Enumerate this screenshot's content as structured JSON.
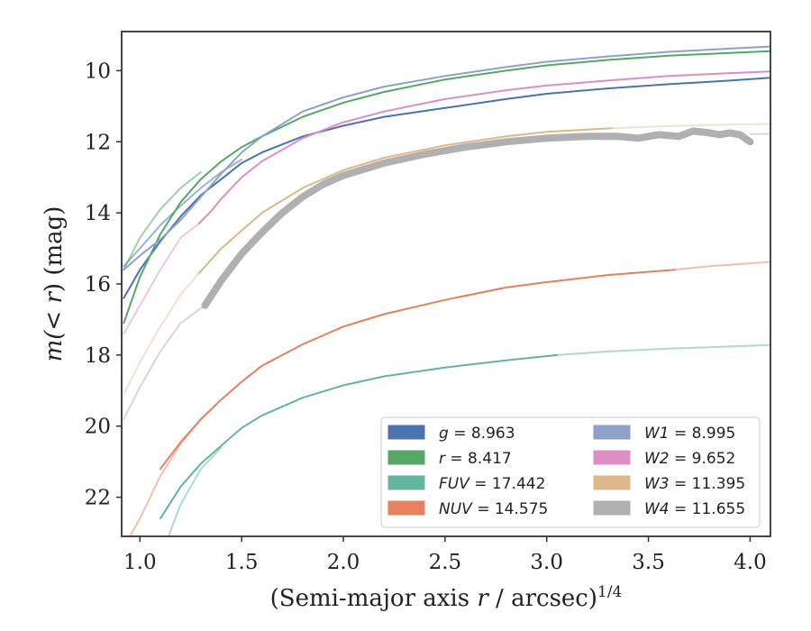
{
  "chart_data": {
    "type": "line",
    "title": "",
    "xlabel_main": "(Semi-major axis ",
    "xlabel_var": "r",
    "xlabel_unit": " / arcsec)",
    "xlabel_exp": "1/4",
    "ylabel_main": "m(< ",
    "ylabel_var": "r",
    "ylabel_unit": ") (mag)",
    "xlim": [
      0.91,
      4.1
    ],
    "ylim": [
      23.1,
      8.9
    ],
    "y_inverted": true,
    "grid": false,
    "legend_position": "lower-right",
    "xticks": [
      {
        "value": 1.0,
        "label": "1.0"
      },
      {
        "value": 1.5,
        "label": "1.5"
      },
      {
        "value": 2.0,
        "label": "2.0"
      },
      {
        "value": 2.5,
        "label": "2.5"
      },
      {
        "value": 3.0,
        "label": "3.0"
      },
      {
        "value": 3.5,
        "label": "3.5"
      },
      {
        "value": 4.0,
        "label": "4.0"
      }
    ],
    "yticks": [
      {
        "value": 10,
        "label": "10"
      },
      {
        "value": 12,
        "label": "12"
      },
      {
        "value": 14,
        "label": "14"
      },
      {
        "value": 16,
        "label": "16"
      },
      {
        "value": 18,
        "label": "18"
      },
      {
        "value": 20,
        "label": "20"
      },
      {
        "value": 22,
        "label": "22"
      }
    ],
    "series": [
      {
        "id": "g",
        "name": "g",
        "total": "8.963",
        "color": "#4c72b0",
        "width": 2,
        "x": [
          0.92,
          1.0,
          1.1,
          1.2,
          1.3,
          1.4,
          1.5,
          1.6,
          1.8,
          2.0,
          2.2,
          2.5,
          2.8,
          3.0,
          3.3,
          3.6,
          3.9,
          4.1
        ],
        "y": [
          16.4,
          15.6,
          14.8,
          14.1,
          13.5,
          13.05,
          12.6,
          12.3,
          11.85,
          11.55,
          11.3,
          11.05,
          10.8,
          10.65,
          10.5,
          10.38,
          10.28,
          10.2
        ]
      },
      {
        "id": "r",
        "name": "r",
        "total": "8.417",
        "color": "#55a868",
        "width": 2,
        "x": [
          0.92,
          1.0,
          1.1,
          1.2,
          1.3,
          1.4,
          1.5,
          1.6,
          1.8,
          2.0,
          2.2,
          2.5,
          2.8,
          3.0,
          3.3,
          3.6,
          3.9,
          4.1
        ],
        "y": [
          17.1,
          15.8,
          14.6,
          13.7,
          13.05,
          12.55,
          12.15,
          11.85,
          11.3,
          10.9,
          10.6,
          10.25,
          10.0,
          9.85,
          9.7,
          9.58,
          9.5,
          9.45
        ]
      },
      {
        "id": "FUV",
        "name": "FUV",
        "total": "17.442",
        "color": "#64b5a0",
        "width": 2,
        "x": [
          1.1,
          1.2,
          1.3,
          1.4,
          1.5,
          1.6,
          1.8,
          2.0,
          2.2,
          2.5,
          2.8,
          3.05
        ],
        "y": [
          22.6,
          21.7,
          21.05,
          20.55,
          20.05,
          19.7,
          19.2,
          18.85,
          18.6,
          18.35,
          18.15,
          18.0
        ]
      },
      {
        "id": "NUV",
        "name": "NUV",
        "total": "14.575",
        "color": "#e5815f",
        "width": 2,
        "x": [
          1.1,
          1.2,
          1.3,
          1.4,
          1.5,
          1.6,
          1.8,
          2.0,
          2.2,
          2.5,
          2.8,
          3.0,
          3.3,
          3.63
        ],
        "y": [
          21.2,
          20.45,
          19.8,
          19.25,
          18.75,
          18.3,
          17.7,
          17.2,
          16.85,
          16.45,
          16.1,
          15.95,
          15.75,
          15.6
        ]
      },
      {
        "id": "W1",
        "name": "W1",
        "total": "8.995",
        "color": "#8ea2c9",
        "width": 2,
        "x": [
          0.92,
          1.0,
          1.1,
          1.2,
          1.3,
          1.4,
          1.5,
          1.6,
          1.8,
          2.0,
          2.2,
          2.5,
          2.8,
          3.0,
          3.3,
          3.6,
          3.9,
          4.1
        ],
        "y": [
          15.6,
          15.2,
          14.75,
          14.2,
          13.55,
          12.9,
          12.3,
          11.85,
          11.15,
          10.75,
          10.45,
          10.15,
          9.9,
          9.75,
          9.6,
          9.47,
          9.38,
          9.32
        ]
      },
      {
        "id": "W2",
        "name": "W2",
        "total": "9.652",
        "color": "#dd8fc4",
        "width": 2,
        "x": [
          1.29,
          1.35,
          1.4,
          1.5,
          1.6,
          1.8,
          2.0,
          2.2,
          2.5,
          2.8,
          3.0,
          3.3,
          3.6,
          3.9,
          4.1
        ],
        "y": [
          14.3,
          13.95,
          13.6,
          13.0,
          12.55,
          11.9,
          11.45,
          11.15,
          10.8,
          10.55,
          10.42,
          10.28,
          10.15,
          10.07,
          10.02
        ]
      },
      {
        "id": "W3",
        "name": "W3",
        "total": "11.395",
        "color": "#ddb88a",
        "width": 2,
        "x": [
          1.29,
          1.4,
          1.5,
          1.6,
          1.8,
          2.0,
          2.2,
          2.5,
          2.8,
          3.0,
          3.32
        ],
        "y": [
          15.7,
          15.0,
          14.5,
          14.0,
          13.3,
          12.8,
          12.45,
          12.1,
          11.85,
          11.72,
          11.62
        ]
      },
      {
        "id": "W4",
        "name": "W4",
        "total": "11.655",
        "color": "#b0b0b0",
        "width": 8,
        "x": [
          1.32,
          1.4,
          1.5,
          1.6,
          1.7,
          1.8,
          1.9,
          2.0,
          2.2,
          2.4,
          2.6,
          2.8,
          3.0,
          3.2,
          3.35,
          3.45,
          3.55,
          3.65,
          3.72,
          3.8,
          3.85,
          3.9,
          3.95,
          4.0
        ],
        "y": [
          16.6,
          15.9,
          15.15,
          14.55,
          14.0,
          13.55,
          13.2,
          12.95,
          12.6,
          12.35,
          12.15,
          12.0,
          11.9,
          11.85,
          11.85,
          11.9,
          11.8,
          11.85,
          11.7,
          11.75,
          11.8,
          11.75,
          11.8,
          12.0
        ]
      }
    ],
    "extensions": [
      {
        "series": "g",
        "alpha": 0.55,
        "width": 2,
        "x": [
          0.92,
          1.0,
          1.1,
          1.2,
          1.3,
          1.4,
          1.5
        ],
        "y": [
          15.5,
          15.0,
          14.35,
          13.8,
          13.3,
          12.85,
          12.5
        ]
      },
      {
        "series": "r",
        "alpha": 0.55,
        "width": 2,
        "x": [
          0.92,
          1.0,
          1.1,
          1.2,
          1.3
        ],
        "y": [
          15.6,
          14.7,
          13.9,
          13.3,
          12.85
        ]
      },
      {
        "series": "FUV",
        "alpha": 0.5,
        "width": 2,
        "x": [
          1.14,
          1.2,
          1.3,
          1.4
        ],
        "y": [
          23.1,
          22.2,
          21.2,
          20.6
        ]
      },
      {
        "series": "FUV",
        "alpha": 0.5,
        "width": 2,
        "x": [
          3.05,
          3.3,
          3.6,
          3.9,
          4.1
        ],
        "y": [
          18.0,
          17.9,
          17.82,
          17.76,
          17.72
        ]
      },
      {
        "series": "NUV",
        "alpha": 0.5,
        "width": 2,
        "x": [
          0.95,
          1.0,
          1.1,
          1.2,
          1.3
        ],
        "y": [
          23.1,
          22.6,
          21.4,
          20.5,
          19.8
        ]
      },
      {
        "series": "NUV",
        "alpha": 0.5,
        "width": 2,
        "x": [
          3.63,
          3.8,
          4.0,
          4.1
        ],
        "y": [
          15.6,
          15.5,
          15.42,
          15.38
        ]
      },
      {
        "series": "W2",
        "alpha": 0.5,
        "width": 2,
        "x": [
          0.92,
          1.0,
          1.1,
          1.2,
          1.29
        ],
        "y": [
          17.4,
          16.6,
          15.6,
          14.7,
          14.3
        ]
      },
      {
        "series": "W3",
        "alpha": 0.4,
        "width": 2,
        "x": [
          0.92,
          1.0,
          1.1,
          1.2,
          1.29
        ],
        "y": [
          19.1,
          18.2,
          17.2,
          16.3,
          15.7
        ]
      },
      {
        "series": "W3",
        "alpha": 0.4,
        "width": 2,
        "x": [
          3.32,
          3.6,
          3.9,
          4.1
        ],
        "y": [
          11.62,
          11.56,
          11.52,
          11.5
        ]
      },
      {
        "series": "W4",
        "alpha": 0.5,
        "width": 2,
        "x": [
          0.92,
          1.0,
          1.1,
          1.2,
          1.32
        ],
        "y": [
          19.8,
          18.9,
          17.9,
          17.1,
          16.6
        ]
      },
      {
        "series": "W4",
        "alpha": 0.5,
        "width": 2,
        "x": [
          4.0,
          4.1
        ],
        "y": [
          11.78,
          11.78
        ]
      }
    ],
    "legend": {
      "columns": [
        [
          "g",
          "r",
          "FUV",
          "NUV"
        ],
        [
          "W1",
          "W2",
          "W3",
          "W4"
        ]
      ],
      "separator": " = "
    }
  }
}
